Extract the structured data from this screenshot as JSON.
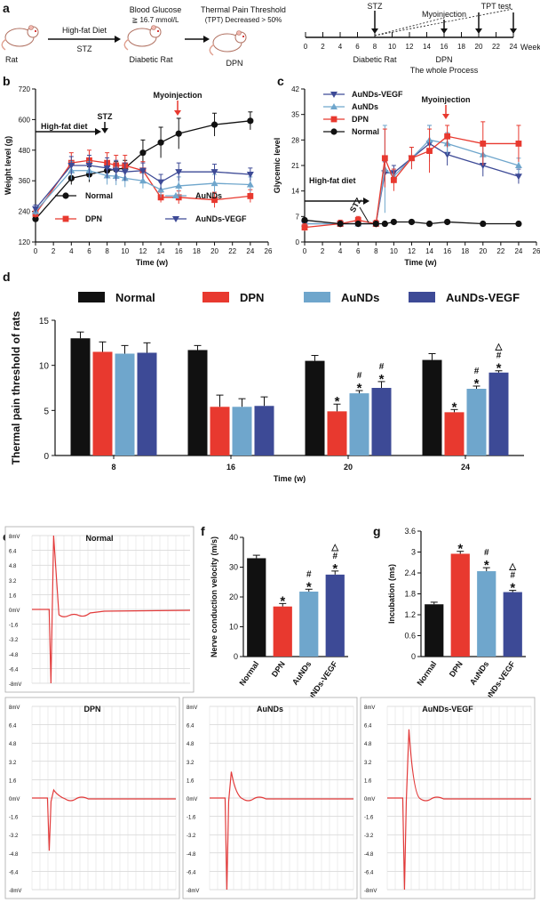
{
  "colors": {
    "normal": "#111111",
    "dpn": "#e8392f",
    "aunds": "#6fa6cc",
    "vegf": "#3d4a96",
    "ecg": "#e23a3a",
    "grid": "#bfbfbf"
  },
  "panel_labels": {
    "a": "a",
    "b": "b",
    "c": "c",
    "d": "d",
    "e": "e",
    "f": "f",
    "g": "g"
  },
  "panel_a": {
    "rat": "Rat",
    "hfd": "High-fat Diet",
    "stz": "STZ",
    "bg_title": "Blood Glucose",
    "bg_value": "≧ 16.7 mmol/L",
    "diabetic_rat": "Diabetic Rat",
    "tpt_title": "Thermal Pain Threshold",
    "tpt_sub": "(TPT) Decreased > 50%",
    "dpn": "DPN",
    "timeline": {
      "ticks": [
        "0",
        "2",
        "4",
        "6",
        "8",
        "10",
        "12",
        "14",
        "16",
        "18",
        "20",
        "22",
        "24"
      ],
      "weeks": "Weeks",
      "stz": "STZ",
      "myoinjection": "Myoinjection",
      "tpt_test": "TPT test",
      "diabetic_rat": "Diabetic Rat",
      "dpn": "DPN",
      "whole_process": "The whole Process"
    }
  },
  "chart_data": [
    {
      "id": "b",
      "type": "line",
      "xlabel": "Time (w)",
      "ylabel": "Weight level (g)",
      "xlim": [
        0,
        26
      ],
      "ylim": [
        120,
        720
      ],
      "xticks": [
        0,
        2,
        4,
        6,
        8,
        10,
        12,
        14,
        16,
        18,
        20,
        22,
        24,
        26
      ],
      "yticks": [
        120,
        240,
        360,
        480,
        600,
        720
      ],
      "annotations": {
        "high_fat_diet": "High-fat diet",
        "stz": "STZ",
        "myoinjection": "Myoinjection"
      },
      "series": [
        {
          "name": "Normal",
          "x": [
            0,
            4,
            6,
            8,
            9,
            10,
            12,
            14,
            16,
            20,
            24
          ],
          "y": [
            210,
            370,
            385,
            400,
            405,
            410,
            470,
            510,
            545,
            580,
            595
          ],
          "err": [
            15,
            25,
            30,
            30,
            30,
            30,
            50,
            60,
            60,
            45,
            35
          ]
        },
        {
          "name": "DPN",
          "x": [
            0,
            4,
            6,
            8,
            9,
            10,
            12,
            14,
            16,
            20,
            24
          ],
          "y": [
            230,
            430,
            440,
            430,
            420,
            420,
            400,
            295,
            295,
            285,
            300
          ],
          "err": [
            15,
            40,
            40,
            40,
            40,
            40,
            35,
            20,
            25,
            30,
            25
          ]
        },
        {
          "name": "AuNDs",
          "x": [
            0,
            4,
            6,
            8,
            9,
            10,
            12,
            14,
            16,
            20,
            24
          ],
          "y": [
            240,
            400,
            400,
            380,
            378,
            370,
            360,
            325,
            340,
            350,
            345
          ],
          "err": [
            15,
            35,
            35,
            35,
            35,
            35,
            30,
            30,
            35,
            35,
            30
          ]
        },
        {
          "name": "AuNDs-VEGF",
          "x": [
            0,
            4,
            6,
            8,
            9,
            10,
            12,
            14,
            16,
            20,
            24
          ],
          "y": [
            250,
            420,
            420,
            410,
            400,
            395,
            400,
            355,
            395,
            395,
            385
          ],
          "err": [
            15,
            35,
            40,
            40,
            40,
            35,
            30,
            30,
            35,
            30,
            25
          ]
        }
      ]
    },
    {
      "id": "c",
      "type": "line",
      "xlabel": "Time (w)",
      "ylabel": "Glycemic level",
      "xlim": [
        0,
        26
      ],
      "ylim": [
        0,
        42
      ],
      "xticks": [
        0,
        2,
        4,
        6,
        8,
        10,
        12,
        14,
        16,
        18,
        20,
        22,
        24,
        26
      ],
      "yticks": [
        0,
        7,
        14,
        21,
        28,
        35,
        42
      ],
      "annotations": {
        "high_fat_diet": "High-fat diet",
        "stz": "STZ",
        "myoinjection": "Myoinjection"
      },
      "series": [
        {
          "name": "AuNDs-VEGF",
          "x": [
            0,
            4,
            6,
            8,
            9,
            10,
            12,
            14,
            16,
            20,
            24
          ],
          "y": [
            5,
            5,
            5,
            5,
            19,
            19,
            23,
            27,
            24,
            21,
            18
          ],
          "err": [
            0.8,
            0.8,
            0.8,
            0.8,
            3,
            2,
            3,
            5,
            3,
            3,
            2
          ]
        },
        {
          "name": "AuNDs",
          "x": [
            0,
            4,
            6,
            8,
            9,
            10,
            12,
            14,
            16,
            20,
            24
          ],
          "y": [
            5,
            5,
            5,
            5,
            20,
            18,
            23,
            28,
            27,
            24,
            21
          ],
          "err": [
            0.8,
            0.8,
            0.8,
            0.8,
            12,
            2,
            3,
            4,
            3,
            3,
            2
          ]
        },
        {
          "name": "DPN",
          "x": [
            0,
            4,
            6,
            8,
            9,
            10,
            12,
            14,
            16,
            20,
            24
          ],
          "y": [
            4,
            5,
            6,
            5,
            23,
            17,
            23,
            25,
            29,
            27,
            27
          ],
          "err": [
            1,
            1,
            1,
            1,
            8,
            3,
            3,
            6,
            3,
            6,
            5
          ]
        },
        {
          "name": "Normal",
          "x": [
            0,
            4,
            6,
            8,
            9,
            10,
            12,
            14,
            16,
            20,
            24
          ],
          "y": [
            6,
            5,
            5,
            5,
            5,
            5.5,
            5.5,
            5,
            5.5,
            5,
            5
          ],
          "err": [
            0.5,
            0.5,
            0.5,
            0.5,
            0.5,
            0.5,
            0.5,
            0.5,
            0.5,
            0.5,
            0.5
          ]
        }
      ]
    },
    {
      "id": "d",
      "type": "bar",
      "xlabel": "Time (w)",
      "ylabel": "Thermal pain threshold of rats",
      "ylim": [
        0,
        15
      ],
      "yticks": [
        0,
        5,
        10,
        15
      ],
      "categories": [
        "8",
        "16",
        "20",
        "24"
      ],
      "series": [
        {
          "name": "Normal",
          "values": [
            13,
            11.7,
            10.5,
            10.6
          ],
          "err": [
            0.7,
            0.5,
            0.6,
            0.7
          ],
          "marks": [
            "",
            "",
            "",
            ""
          ]
        },
        {
          "name": "DPN",
          "values": [
            11.5,
            5.4,
            4.9,
            4.8
          ],
          "err": [
            1.1,
            1.3,
            0.8,
            0.3
          ],
          "marks": [
            "",
            "",
            "*",
            "*"
          ]
        },
        {
          "name": "AuNDs",
          "values": [
            11.3,
            5.4,
            6.9,
            7.4
          ],
          "err": [
            0.9,
            0.9,
            0.3,
            0.3
          ],
          "marks": [
            "",
            "",
            "*\n#",
            "*\n#"
          ]
        },
        {
          "name": "AuNDs-VEGF",
          "values": [
            11.4,
            5.5,
            7.5,
            9.2
          ],
          "err": [
            1.1,
            1.0,
            0.7,
            0.2
          ],
          "marks": [
            "",
            "",
            "*\n#",
            "*\n#\n△"
          ]
        }
      ]
    },
    {
      "id": "f",
      "type": "bar",
      "xlabel": "",
      "ylabel": "Nerve conduction velocity (m/s)",
      "ylim": [
        0,
        40
      ],
      "yticks": [
        0,
        10,
        20,
        30,
        40
      ],
      "categories": [
        "Normal",
        "DPN",
        "AuNDs",
        "AuNDs-VEGF"
      ],
      "values": [
        33,
        16.8,
        21.8,
        27.5
      ],
      "err": [
        1,
        1,
        0.8,
        1.2
      ],
      "marks": [
        "",
        "*",
        "*\n#",
        "*\n#\n△"
      ]
    },
    {
      "id": "g",
      "type": "bar",
      "xlabel": "",
      "ylabel": "Incubation (ms)",
      "ylim": [
        0,
        3.6
      ],
      "yticks": [
        0,
        0.6,
        1.2,
        1.8,
        2.4,
        3.0,
        3.6
      ],
      "categories": [
        "Normal",
        "DPN",
        "AuNDs",
        "AuNDs-VEGF"
      ],
      "values": [
        1.5,
        2.95,
        2.45,
        1.85
      ],
      "err": [
        0.06,
        0.07,
        0.1,
        0.05
      ],
      "marks": [
        "",
        "*",
        "*\n#",
        "*\n#\n△"
      ]
    }
  ],
  "panel_e": {
    "ylabels": [
      "8mV",
      "6.4",
      "4.8",
      "3.2",
      "1.6",
      "0mV",
      "-1.6",
      "-3.2",
      "-4.8",
      "-6.4",
      "-8mV"
    ],
    "traces": [
      {
        "title": "Normal",
        "peak": 8,
        "trough": -8
      },
      {
        "title": "DPN",
        "peak": 0.7,
        "trough": -4.6
      },
      {
        "title": "AuNDs",
        "peak": 2.3,
        "trough": -8
      },
      {
        "title": "AuNDs-VEGF",
        "peak": 6,
        "trough": -8
      }
    ]
  }
}
